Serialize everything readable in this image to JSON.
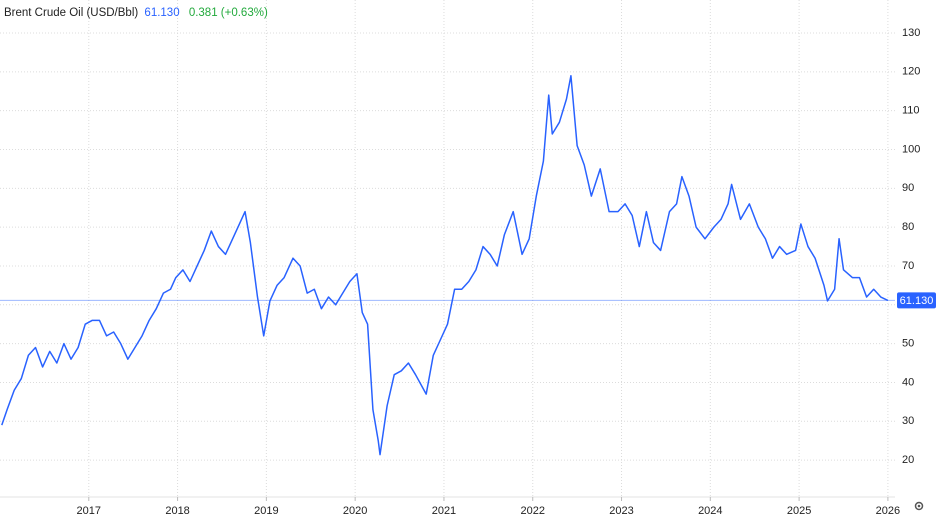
{
  "chart_data": {
    "type": "line",
    "title": "Brent Crude Oil (USD/Bbl)",
    "change": "0.381 (+0.63%)",
    "color": "#2962ff",
    "change_color": "#22a93c",
    "last_price": {
      "value": 61.13,
      "label": "61.130"
    },
    "x": [
      2016.02,
      2016.08,
      2016.16,
      2016.24,
      2016.32,
      2016.4,
      2016.48,
      2016.56,
      2016.64,
      2016.72,
      2016.8,
      2016.88,
      2016.96,
      2017.04,
      2017.12,
      2017.2,
      2017.28,
      2017.36,
      2017.44,
      2017.52,
      2017.6,
      2017.68,
      2017.76,
      2017.84,
      2017.92,
      2017.98,
      2018.06,
      2018.14,
      2018.22,
      2018.3,
      2018.38,
      2018.46,
      2018.54,
      2018.62,
      2018.7,
      2018.76,
      2018.82,
      2018.9,
      2018.97,
      2019.04,
      2019.12,
      2019.2,
      2019.3,
      2019.38,
      2019.46,
      2019.54,
      2019.62,
      2019.7,
      2019.78,
      2019.86,
      2019.94,
      2020.02,
      2020.08,
      2020.14,
      2020.2,
      2020.26,
      2020.28,
      2020.36,
      2020.44,
      2020.52,
      2020.6,
      2020.68,
      2020.8,
      2020.88,
      2020.96,
      2021.04,
      2021.12,
      2021.2,
      2021.28,
      2021.36,
      2021.44,
      2021.52,
      2021.6,
      2021.68,
      2021.78,
      2021.88,
      2021.96,
      2022.04,
      2022.12,
      2022.18,
      2022.22,
      2022.3,
      2022.38,
      2022.43,
      2022.5,
      2022.58,
      2022.66,
      2022.76,
      2022.86,
      2022.96,
      2023.04,
      2023.12,
      2023.2,
      2023.28,
      2023.36,
      2023.44,
      2023.54,
      2023.62,
      2023.68,
      2023.76,
      2023.84,
      2023.94,
      2024.04,
      2024.12,
      2024.2,
      2024.24,
      2024.34,
      2024.44,
      2024.54,
      2024.62,
      2024.7,
      2024.78,
      2024.86,
      2024.96,
      2025.02,
      2025.1,
      2025.18,
      2025.28,
      2025.32,
      2025.4,
      2025.45,
      2025.5,
      2025.6,
      2025.68,
      2025.76,
      2025.84,
      2025.92,
      2026.0
    ],
    "values": [
      29,
      33,
      38,
      41,
      47,
      49,
      44,
      48,
      45,
      50,
      46,
      49,
      55,
      56,
      56,
      52,
      53,
      50,
      46,
      49,
      52,
      56,
      59,
      63,
      64,
      67,
      69,
      66,
      70,
      74,
      79,
      75,
      73,
      77,
      81,
      84,
      76,
      62,
      52,
      61,
      65,
      67,
      72,
      70,
      63,
      64,
      59,
      62,
      60,
      63,
      66,
      68,
      58,
      55,
      33,
      25,
      21.4,
      34,
      42,
      43,
      45,
      42,
      37,
      47,
      51,
      55,
      64,
      64,
      66,
      69,
      75,
      73,
      70,
      78,
      84,
      73,
      77,
      88,
      97,
      114,
      104,
      107,
      113,
      119,
      101,
      96,
      88,
      95,
      84,
      84,
      86,
      83,
      75,
      84,
      76,
      74,
      84,
      86,
      93,
      88,
      80,
      77,
      80,
      82,
      86,
      91,
      82,
      86,
      80,
      77,
      72,
      75,
      73,
      74,
      80.8,
      75,
      72,
      65,
      61,
      64,
      77,
      69,
      67,
      67,
      62,
      64,
      62,
      61.13
    ],
    "xlim": [
      2016,
      2026.08
    ],
    "xticks": [
      2017,
      2018,
      2019,
      2020,
      2021,
      2022,
      2023,
      2024,
      2025,
      2026
    ],
    "ylim": [
      10.5,
      138.5
    ],
    "yticks": [
      20,
      30,
      40,
      50,
      60,
      70,
      80,
      90,
      100,
      110,
      120,
      130
    ],
    "grid": true
  }
}
